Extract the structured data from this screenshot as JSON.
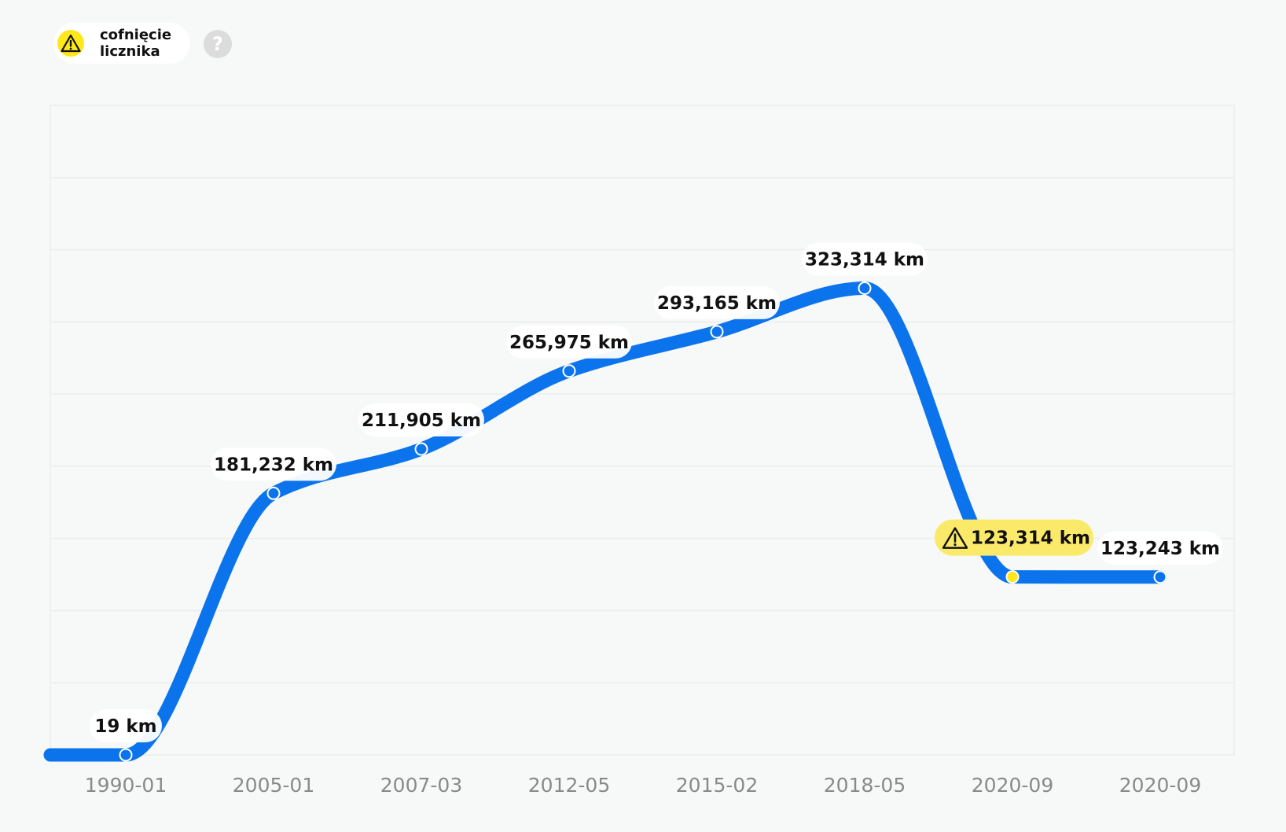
{
  "legend": {
    "icon": "warning-triangle-icon",
    "label": "cofnięcie licznika",
    "help_icon": "question-mark-icon",
    "help_symbol": "?"
  },
  "colors": {
    "line": "#0b74ec",
    "warning": "#ffe71a",
    "warning_label_bg": "#fbe96a",
    "grid": "#ececec",
    "plot_bg": "#f7f8f8"
  },
  "chart_data": {
    "type": "line",
    "unit": "km",
    "x": [
      "1990-01",
      "2005-01",
      "2007-03",
      "2012-05",
      "2015-02",
      "2018-05",
      "2020-09",
      "2020-09"
    ],
    "values": [
      19,
      181232,
      211905,
      265975,
      293165,
      323314,
      123314,
      123243
    ],
    "data_labels": [
      "19 km",
      "181,232 km",
      "211,905 km",
      "265,975 km",
      "293,165 km",
      "323,314 km",
      "123,314 km",
      "123,243 km"
    ],
    "warning_points": [
      6
    ],
    "warning_label": "cofnięcie licznika",
    "ylim": [
      0,
      450000
    ],
    "grid": true,
    "gridlines": 9
  }
}
